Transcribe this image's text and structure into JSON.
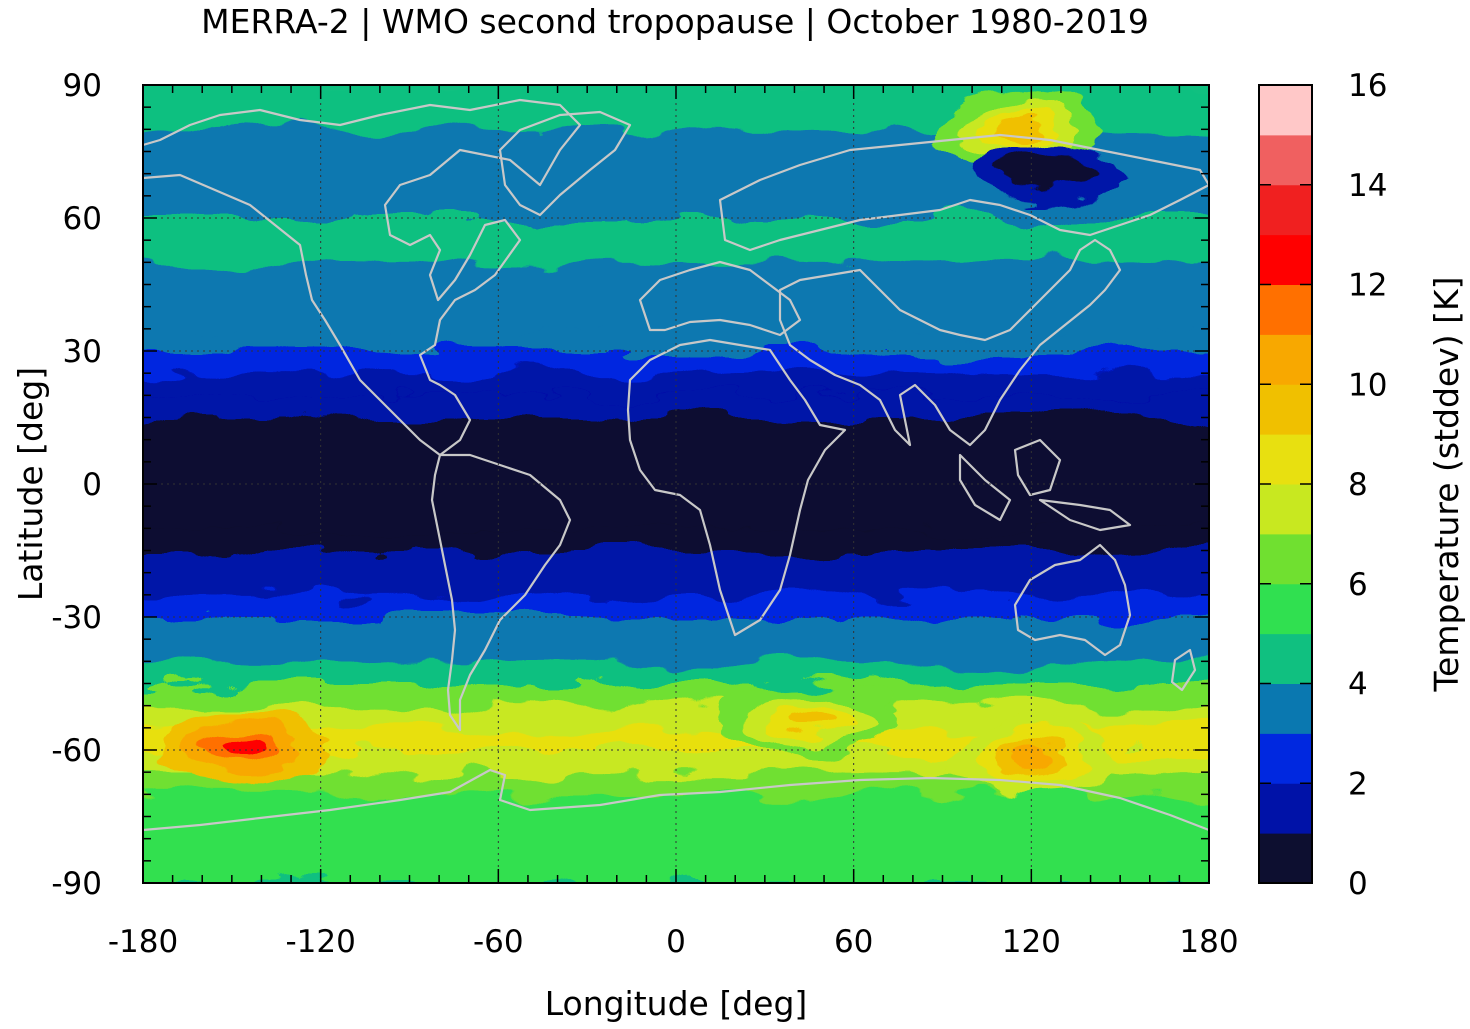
{
  "title": "MERRA-2 | WMO second tropopause | October 1980-2019",
  "chart_data": {
    "type": "heatmap",
    "title": "MERRA-2 | WMO second tropopause | October 1980-2019",
    "xlabel": "Longitude [deg]",
    "ylabel": "Latitude [deg]",
    "xlim": [
      -180,
      180
    ],
    "ylim": [
      -90,
      90
    ],
    "x_ticks": [
      -180,
      -120,
      -60,
      0,
      60,
      120,
      180
    ],
    "y_ticks": [
      -90,
      -60,
      -30,
      0,
      30,
      60,
      90
    ],
    "x_tick_labels": [
      "-180",
      "-120",
      "-60",
      "0",
      "60",
      "120",
      "180"
    ],
    "y_tick_labels": [
      "-90",
      "-60",
      "-30",
      "0",
      "30",
      "60",
      "90"
    ],
    "grid": "dotted",
    "overlay": "coastlines",
    "colorbar": {
      "label": "Temperature (stddev) [K]",
      "range": [
        0,
        16
      ],
      "step": 1,
      "tick_values": [
        0,
        2,
        4,
        6,
        8,
        10,
        12,
        14,
        16
      ],
      "tick_labels": [
        "0",
        "2",
        "4",
        "6",
        "8",
        "10",
        "12",
        "14",
        "16"
      ],
      "colors": [
        "#0d0f30",
        "#0012a8",
        "#0028e0",
        "#0a78b0",
        "#10c080",
        "#30e050",
        "#70e030",
        "#c8e820",
        "#e8e010",
        "#f0c000",
        "#f8a800",
        "#ff7000",
        "#ff0000",
        "#f02020",
        "#f06060",
        "#ffc8c8"
      ]
    },
    "latitude_profile": {
      "lat": [
        -90,
        -80,
        -70,
        -65,
        -60,
        -55,
        -50,
        -45,
        -40,
        -35,
        -30,
        -25,
        -20,
        -15,
        -10,
        0,
        10,
        15,
        20,
        25,
        30,
        35,
        40,
        50,
        60,
        70,
        80,
        90
      ],
      "stddev_K": [
        5.5,
        5.2,
        5.8,
        6.8,
        8.2,
        8.0,
        7.0,
        5.5,
        4.3,
        3.5,
        2.6,
        2.0,
        1.4,
        0.6,
        0.4,
        0.3,
        0.4,
        0.8,
        1.6,
        2.2,
        3.0,
        3.5,
        3.8,
        4.0,
        4.2,
        3.0,
        3.8,
        5.0
      ]
    },
    "local_extremes": [
      {
        "lon": -145,
        "lat": -60,
        "stddev_K": 12.5
      },
      {
        "lon": 120,
        "lat": -62,
        "stddev_K": 10
      },
      {
        "lon": 45,
        "lat": -53,
        "stddev_K": 9.5
      },
      {
        "lon": 115,
        "lat": 80,
        "stddev_K": 9
      },
      {
        "lon": 125,
        "lat": 70,
        "stddev_K": 0.5
      }
    ]
  }
}
